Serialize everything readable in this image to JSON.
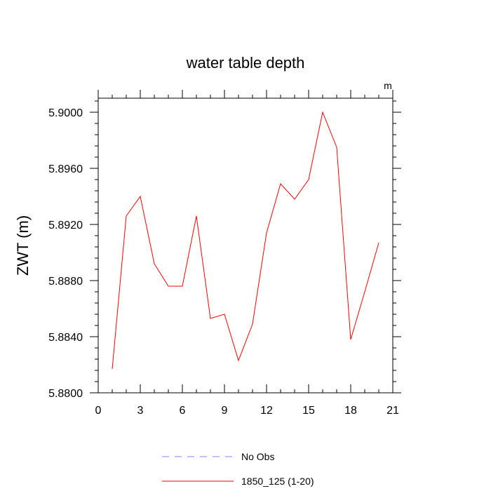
{
  "chart_data": {
    "type": "line",
    "title": "water table depth",
    "ylabel": "ZWT  (m)",
    "unit_label": "m",
    "xlim": [
      0,
      21
    ],
    "ylim": [
      5.88,
      5.901
    ],
    "xticks": [
      0,
      3,
      6,
      9,
      12,
      15,
      18,
      21
    ],
    "yticks": [
      5.88,
      5.884,
      5.888,
      5.892,
      5.896,
      5.9
    ],
    "ytick_labels": [
      "5.8800",
      "5.8840",
      "5.8880",
      "5.8920",
      "5.8960",
      "5.9000"
    ],
    "series": [
      {
        "name": "1850_125 (1-20)",
        "color": "#ff0000",
        "dash": "solid",
        "x": [
          1,
          2,
          3,
          4,
          5,
          6,
          7,
          8,
          9,
          10,
          11,
          12,
          13,
          14,
          15,
          16,
          17,
          18,
          19,
          20
        ],
        "values": [
          5.8817,
          5.8926,
          5.894,
          5.8892,
          5.8876,
          5.8876,
          5.8926,
          5.8853,
          5.8856,
          5.8823,
          5.8849,
          5.8914,
          5.8949,
          5.8938,
          5.8952,
          5.9,
          5.8975,
          5.8838,
          5.8872,
          5.8907
        ]
      },
      {
        "name": "No Obs",
        "color": "#8080ff",
        "dash": "dashed",
        "x": [],
        "values": []
      }
    ],
    "legend": {
      "placement": "bottom",
      "entries": [
        {
          "label": "No Obs",
          "color": "#8080ff",
          "dash": "dashed"
        },
        {
          "label": "1850_125 (1-20)",
          "color": "#ff0000",
          "dash": "solid"
        }
      ]
    }
  }
}
